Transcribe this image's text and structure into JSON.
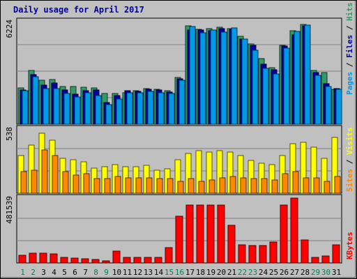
{
  "chart_data": {
    "type": "bar",
    "title": "Daily usage for April 2017",
    "days": [
      "1",
      "2",
      "3",
      "4",
      "5",
      "6",
      "7",
      "8",
      "9",
      "10",
      "11",
      "12",
      "13",
      "14",
      "15",
      "16",
      "17",
      "18",
      "19",
      "20",
      "21",
      "22",
      "23",
      "24",
      "25",
      "26",
      "27",
      "28",
      "29",
      "30",
      "31"
    ],
    "weekend_days": [
      "1",
      "2",
      "8",
      "9",
      "15",
      "16",
      "22",
      "23",
      "29",
      "30"
    ],
    "panels": [
      {
        "ymax_label": "6224",
        "ymax": 6224,
        "series": [
          {
            "name": "Hits",
            "color": "#339966",
            "values": [
              2190,
              3230,
              2670,
              2680,
              2270,
              2270,
              2210,
              2180,
              1850,
              1830,
              1910,
              2020,
              2160,
              2120,
              2000,
              2800,
              5950,
              5730,
              5750,
              5850,
              5770,
              5300,
              4820,
              3960,
              3390,
              4750,
              5640,
              6030,
              3240,
              3110,
              2110
            ]
          },
          {
            "name": "Files",
            "color": "#0000a0",
            "values": [
              2060,
              2990,
              2340,
              2500,
              2050,
              1820,
              2010,
              2050,
              1320,
              1720,
              2010,
              1960,
              2120,
              2080,
              1950,
              2720,
              5670,
              5680,
              5650,
              5750,
              5700,
              5110,
              4750,
              3630,
              3290,
              4710,
              5370,
              5930,
              3100,
              2450,
              2140
            ]
          },
          {
            "name": "Pages",
            "color": "#0099e6",
            "values": [
              2000,
              2840,
              2140,
              2140,
              1840,
              1630,
              1900,
              1720,
              1160,
              1530,
              1880,
              1900,
              1990,
              1900,
              1850,
              2650,
              5900,
              5530,
              5670,
              5570,
              5790,
              5120,
              4470,
              3370,
              3040,
              4580,
              5600,
              5980,
              2930,
              2260,
              2120
            ]
          }
        ]
      },
      {
        "ymax_label": "538",
        "ymax": 538,
        "series": [
          {
            "name": "Visits",
            "color": "#ffff00",
            "values": [
              310,
              400,
              500,
              440,
              290,
              280,
              260,
              210,
              220,
              240,
              220,
              220,
              230,
              190,
              200,
              280,
              330,
              350,
              340,
              350,
              340,
              310,
              270,
              250,
              240,
              310,
              410,
              420,
              380,
              290,
              460
            ]
          },
          {
            "name": "Sites",
            "color": "#ff8800",
            "values": [
              180,
              190,
              360,
              310,
              180,
              150,
              160,
              120,
              120,
              140,
              130,
              130,
              130,
              120,
              120,
              100,
              120,
              100,
              110,
              130,
              140,
              130,
              120,
              120,
              110,
              160,
              180,
              130,
              130,
              100,
              140
            ]
          }
        ]
      },
      {
        "ymax_label": "481539",
        "ymax": 481539,
        "series": [
          {
            "name": "KBytes",
            "color": "#ff0000",
            "values": [
              54000,
              70000,
              73000,
              66000,
              39000,
              38000,
              33000,
              26000,
              13000,
              88000,
              39000,
              40000,
              40000,
              41000,
              113000,
              342000,
              425000,
              425000,
              425000,
              425000,
              275000,
              131000,
              126000,
              128000,
              155000,
              425000,
              475000,
              170000,
              40000,
              52000,
              135000
            ]
          }
        ]
      }
    ],
    "legend": [
      {
        "text": "Pages",
        "color": "#0099e6"
      },
      {
        "text": "Files",
        "color": "#0000a0"
      },
      {
        "text": "Hits",
        "color": "#339966"
      },
      {
        "text": "Sites",
        "color": "#ff8800"
      },
      {
        "text": "Visits",
        "color": "#ffff00"
      },
      {
        "text": "KBytes",
        "color": "#ff0000"
      }
    ],
    "legend_separator": " / ",
    "colors": {
      "weekday_tick": "#000000",
      "weekend_tick": "#00805c",
      "plot_bg": "#c0c0c0",
      "grid": "#808080"
    }
  }
}
